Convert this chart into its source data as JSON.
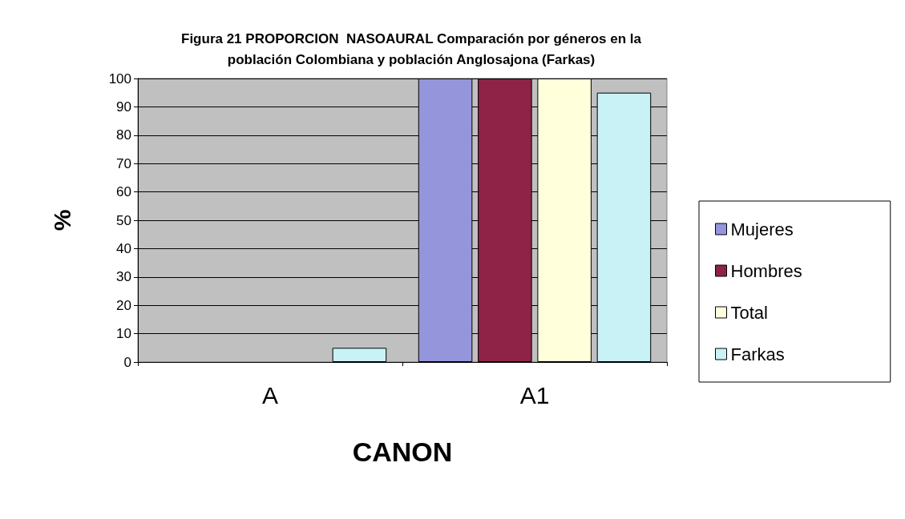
{
  "chart_data": {
    "type": "bar",
    "title": "Figura 21 PROPORCION  NASOAURAL Comparación por géneros en la\npoblación Colombiana y población Anglosajona (Farkas)",
    "xlabel": "CANON",
    "ylabel": "%",
    "categories": [
      "A",
      "A1"
    ],
    "series": [
      {
        "name": "Mujeres",
        "color": "#9595dc",
        "values": [
          0,
          100
        ]
      },
      {
        "name": "Hombres",
        "color": "#8e2347",
        "values": [
          0,
          100
        ]
      },
      {
        "name": "Total",
        "color": "#ffffdc",
        "values": [
          0,
          100
        ]
      },
      {
        "name": "Farkas",
        "color": "#c8f2f6",
        "values": [
          5,
          95
        ]
      }
    ],
    "ylim": [
      0,
      100
    ],
    "yticks": [
      0,
      10,
      20,
      30,
      40,
      50,
      60,
      70,
      80,
      90,
      100
    ],
    "grid": "y",
    "legend": "right"
  }
}
